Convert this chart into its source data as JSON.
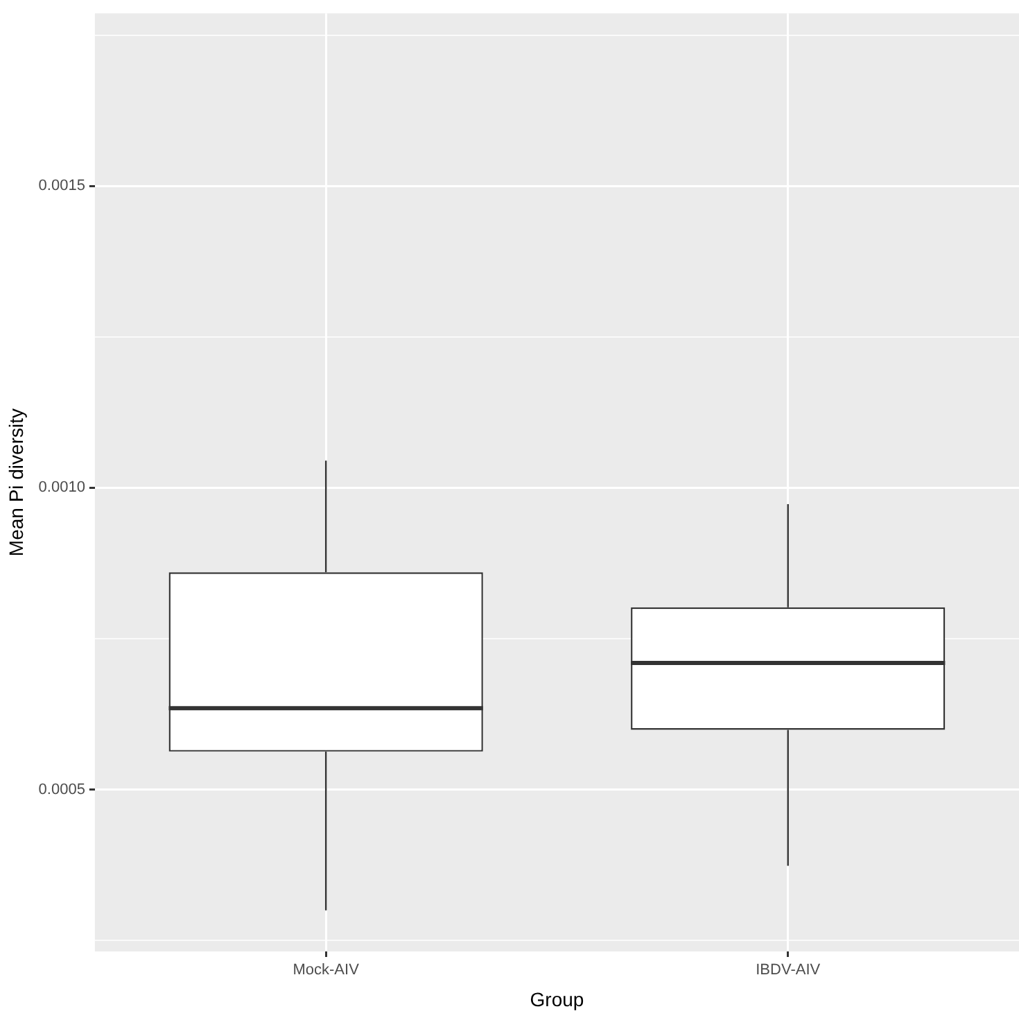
{
  "chart_data": {
    "type": "box",
    "xlabel": "Group",
    "ylabel": "Mean Pi diversity",
    "categories": [
      "Mock-AIV",
      "IBDV-AIV"
    ],
    "boxes": [
      {
        "low": 0.0003,
        "q1": 0.000563,
        "median": 0.000635,
        "q3": 0.00086,
        "high": 0.001045
      },
      {
        "low": 0.000374,
        "q1": 0.000599,
        "median": 0.00071,
        "q3": 0.000802,
        "high": 0.000973
      }
    ],
    "ylim": [
      0.000232,
      0.001786
    ],
    "yticks": [
      {
        "value": 0.00025,
        "label": null
      },
      {
        "value": 0.0005,
        "label": "0.0005"
      },
      {
        "value": 0.00075,
        "label": null
      },
      {
        "value": 0.001,
        "label": "0.0010"
      },
      {
        "value": 0.00125,
        "label": null
      },
      {
        "value": 0.0015,
        "label": "0.0015"
      },
      {
        "value": 0.00175,
        "label": null
      }
    ],
    "grid": true,
    "legend": false
  }
}
